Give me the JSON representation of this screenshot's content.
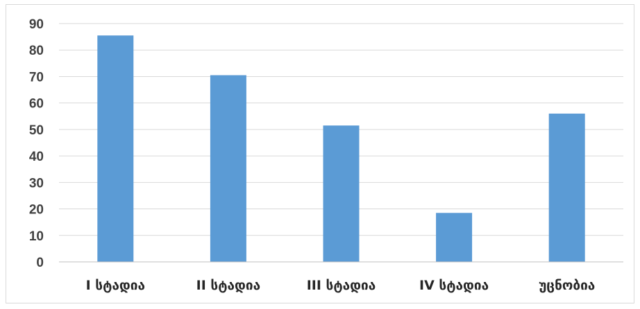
{
  "chart_data": {
    "type": "bar",
    "categories": [
      "I სტადია",
      "II სტადია",
      "III სტადია",
      "IV სტადია",
      "უცნობია"
    ],
    "values": [
      85.5,
      70.5,
      51.5,
      18.5,
      56
    ],
    "ylim": [
      0,
      90
    ],
    "yticks": [
      "0",
      "10",
      "20",
      "30",
      "40",
      "50",
      "60",
      "70",
      "80",
      "90"
    ],
    "title": "",
    "xlabel": "",
    "ylabel": "",
    "grid": true,
    "legend": "none",
    "colors": {
      "bar": "#5b9bd5",
      "grid": "#d9d9d9",
      "axis": "#bfbfbf"
    }
  }
}
